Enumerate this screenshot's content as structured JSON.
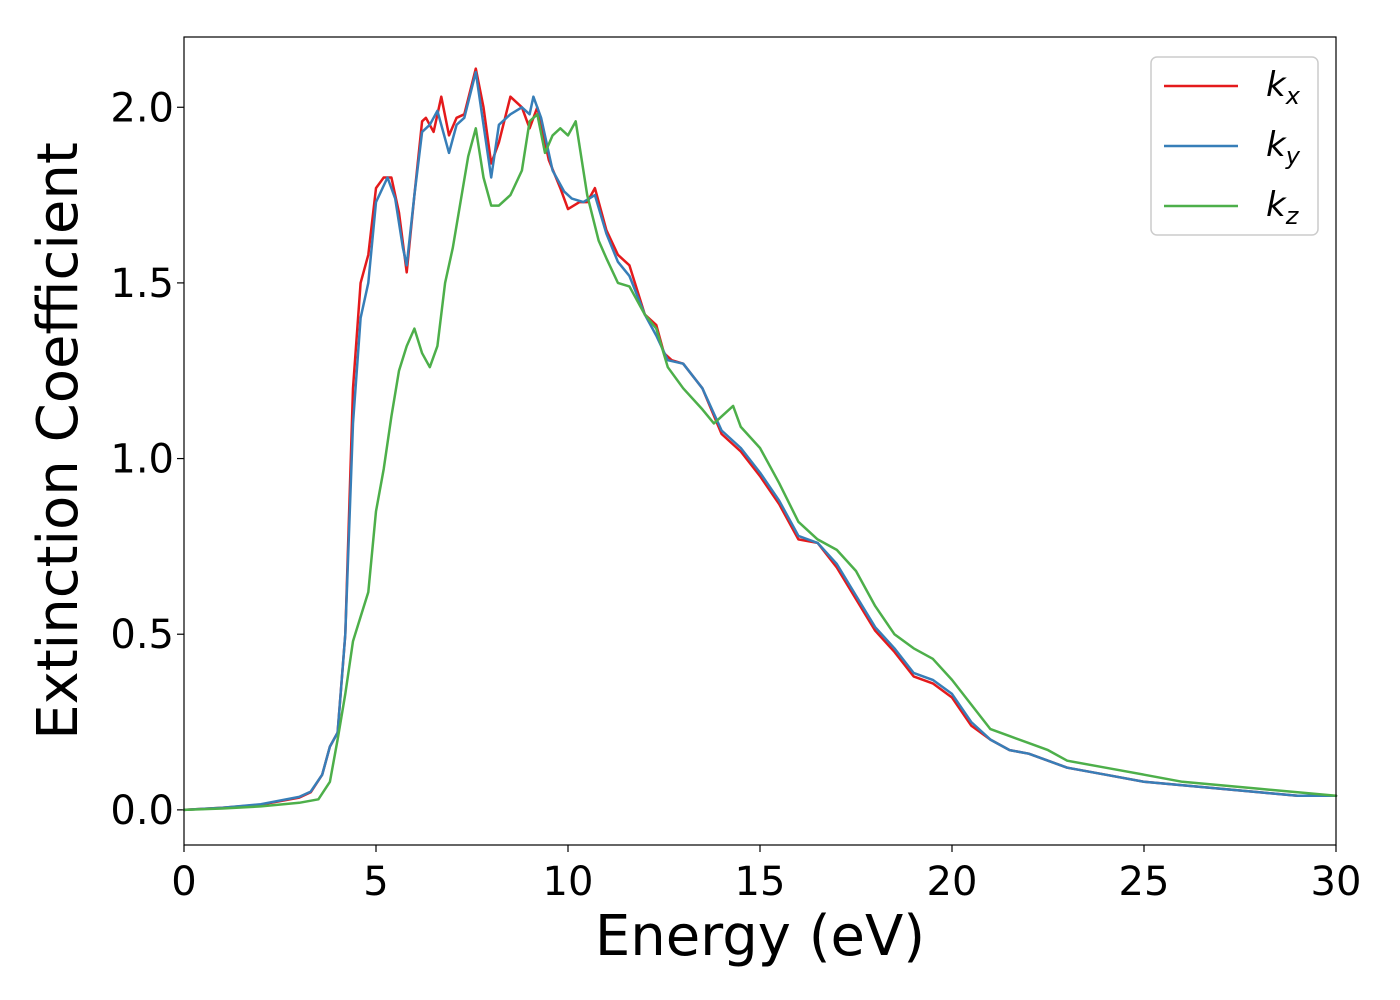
{
  "chart_data": {
    "type": "line",
    "title": "",
    "xlabel": "Energy (eV)",
    "ylabel": "Extinction Coefficient",
    "xlim": [
      0,
      30
    ],
    "ylim": [
      -0.1,
      2.2
    ],
    "xticks": [
      0,
      5,
      10,
      15,
      20,
      25,
      30
    ],
    "xtick_labels": [
      "0",
      "5",
      "10",
      "15",
      "20",
      "25",
      "30"
    ],
    "yticks": [
      0.0,
      0.5,
      1.0,
      1.5,
      2.0
    ],
    "ytick_labels": [
      "0.0",
      "0.5",
      "1.0",
      "1.5",
      "2.0"
    ],
    "grid": false,
    "legend_position": "top-right",
    "series": [
      {
        "name": "kx",
        "legend_base": "k",
        "legend_sub": "x",
        "color": "#e41a1c",
        "x": [
          0,
          1,
          2,
          3,
          3.3,
          3.6,
          3.8,
          4.0,
          4.2,
          4.4,
          4.6,
          4.8,
          5.0,
          5.2,
          5.4,
          5.6,
          5.8,
          6.0,
          6.2,
          6.3,
          6.5,
          6.7,
          6.9,
          7.1,
          7.3,
          7.6,
          7.8,
          8.0,
          8.2,
          8.5,
          8.8,
          9.0,
          9.2,
          9.5,
          9.8,
          10.0,
          10.3,
          10.5,
          10.7,
          11.0,
          11.3,
          11.6,
          12.0,
          12.3,
          12.5,
          12.7,
          13.0,
          13.5,
          14.0,
          14.5,
          15.0,
          15.5,
          16.0,
          16.5,
          17.0,
          17.5,
          18.0,
          18.5,
          19.0,
          19.5,
          20.0,
          20.5,
          21.0,
          21.5,
          22.0,
          22.5,
          23.0,
          24.0,
          25.0,
          26.0,
          27.0,
          28.0,
          29.0,
          30.0
        ],
        "y": [
          0.0,
          0.006,
          0.015,
          0.035,
          0.05,
          0.1,
          0.18,
          0.22,
          0.5,
          1.2,
          1.5,
          1.58,
          1.77,
          1.8,
          1.8,
          1.7,
          1.53,
          1.75,
          1.96,
          1.97,
          1.93,
          2.03,
          1.92,
          1.97,
          1.98,
          2.11,
          2.0,
          1.84,
          1.9,
          2.03,
          2.0,
          1.94,
          2.0,
          1.85,
          1.77,
          1.71,
          1.73,
          1.73,
          1.77,
          1.65,
          1.58,
          1.55,
          1.41,
          1.38,
          1.3,
          1.28,
          1.27,
          1.2,
          1.07,
          1.02,
          0.95,
          0.87,
          0.77,
          0.76,
          0.69,
          0.6,
          0.51,
          0.45,
          0.38,
          0.36,
          0.32,
          0.24,
          0.2,
          0.17,
          0.16,
          0.14,
          0.12,
          0.1,
          0.08,
          0.07,
          0.06,
          0.05,
          0.04,
          0.04
        ]
      },
      {
        "name": "ky",
        "legend_base": "k",
        "legend_sub": "y",
        "color": "#377eb8",
        "x": [
          0,
          1,
          2,
          3,
          3.3,
          3.6,
          3.8,
          4.0,
          4.2,
          4.4,
          4.6,
          4.8,
          5.0,
          5.3,
          5.5,
          5.7,
          5.8,
          6.0,
          6.2,
          6.4,
          6.6,
          6.9,
          7.1,
          7.3,
          7.6,
          7.8,
          8.0,
          8.2,
          8.5,
          8.8,
          9.0,
          9.1,
          9.3,
          9.6,
          9.9,
          10.1,
          10.4,
          10.7,
          11.0,
          11.3,
          11.6,
          12.0,
          12.3,
          12.6,
          13.0,
          13.5,
          14.0,
          14.5,
          15.0,
          15.5,
          16.0,
          16.5,
          17.0,
          17.5,
          18.0,
          18.5,
          19.0,
          19.5,
          20.0,
          20.5,
          21.0,
          21.5,
          22.0,
          22.5,
          23.0,
          24.0,
          25.0,
          26.0,
          27.0,
          28.0,
          29.0,
          30.0
        ],
        "y": [
          0.0,
          0.006,
          0.016,
          0.037,
          0.052,
          0.1,
          0.18,
          0.22,
          0.5,
          1.1,
          1.4,
          1.5,
          1.73,
          1.8,
          1.74,
          1.6,
          1.55,
          1.75,
          1.93,
          1.95,
          1.99,
          1.87,
          1.95,
          1.97,
          2.1,
          1.95,
          1.8,
          1.95,
          1.98,
          2.0,
          1.98,
          2.03,
          1.97,
          1.82,
          1.76,
          1.74,
          1.73,
          1.75,
          1.64,
          1.56,
          1.52,
          1.41,
          1.35,
          1.28,
          1.27,
          1.2,
          1.08,
          1.03,
          0.96,
          0.88,
          0.78,
          0.76,
          0.7,
          0.61,
          0.52,
          0.46,
          0.39,
          0.37,
          0.33,
          0.25,
          0.2,
          0.17,
          0.16,
          0.14,
          0.12,
          0.1,
          0.08,
          0.07,
          0.06,
          0.05,
          0.04,
          0.04
        ]
      },
      {
        "name": "kz",
        "legend_base": "k",
        "legend_sub": "z",
        "color": "#4daf4a",
        "x": [
          0,
          1,
          2,
          3,
          3.5,
          3.8,
          4.0,
          4.2,
          4.4,
          4.6,
          4.8,
          5.0,
          5.2,
          5.4,
          5.6,
          5.8,
          6.0,
          6.2,
          6.4,
          6.6,
          6.8,
          7.0,
          7.2,
          7.4,
          7.6,
          7.8,
          8.0,
          8.2,
          8.5,
          8.8,
          9.0,
          9.2,
          9.4,
          9.6,
          9.8,
          10.0,
          10.2,
          10.5,
          10.8,
          11.0,
          11.3,
          11.6,
          12.0,
          12.3,
          12.6,
          13.0,
          13.5,
          13.8,
          14.0,
          14.3,
          14.5,
          15.0,
          15.5,
          16.0,
          16.5,
          17.0,
          17.5,
          18.0,
          18.5,
          19.0,
          19.5,
          20.0,
          20.5,
          21.0,
          21.5,
          22.0,
          22.5,
          23.0,
          24.0,
          25.0,
          26.0,
          27.0,
          28.0,
          29.0,
          30.0
        ],
        "y": [
          0.0,
          0.004,
          0.01,
          0.02,
          0.03,
          0.08,
          0.2,
          0.33,
          0.48,
          0.55,
          0.62,
          0.85,
          0.97,
          1.12,
          1.25,
          1.32,
          1.37,
          1.3,
          1.26,
          1.32,
          1.5,
          1.6,
          1.73,
          1.86,
          1.94,
          1.8,
          1.72,
          1.72,
          1.75,
          1.82,
          1.96,
          1.98,
          1.87,
          1.92,
          1.94,
          1.92,
          1.96,
          1.75,
          1.62,
          1.57,
          1.5,
          1.49,
          1.41,
          1.37,
          1.26,
          1.2,
          1.14,
          1.1,
          1.12,
          1.15,
          1.09,
          1.03,
          0.93,
          0.82,
          0.77,
          0.74,
          0.68,
          0.58,
          0.5,
          0.46,
          0.43,
          0.37,
          0.3,
          0.23,
          0.21,
          0.19,
          0.17,
          0.14,
          0.12,
          0.1,
          0.08,
          0.07,
          0.06,
          0.05,
          0.04
        ]
      }
    ]
  }
}
